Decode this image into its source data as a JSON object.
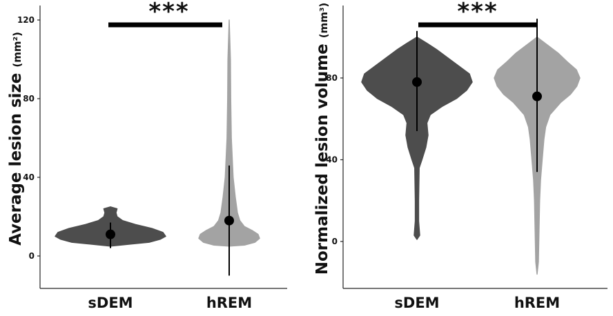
{
  "chart_data": [
    {
      "type": "violin",
      "ylabel": "Average lesion size",
      "yunit": "(mm²)",
      "categories": [
        "sDEM",
        "hREM"
      ],
      "yticks": [
        0,
        40,
        80,
        120
      ],
      "ylim": [
        -15,
        120
      ],
      "grid": false,
      "series": [
        {
          "category": "sDEM",
          "color": "#4d4d4d",
          "median": 11,
          "range": [
            4,
            17
          ],
          "min": 5,
          "max": 25
        },
        {
          "category": "hREM",
          "color": "#a3a3a3",
          "median": 18,
          "range": [
            -10,
            46
          ],
          "min": 5,
          "max": 120
        }
      ],
      "significance": {
        "label": "***",
        "between": [
          "sDEM",
          "hREM"
        ]
      }
    },
    {
      "type": "violin",
      "ylabel": "Normalized lesion volume",
      "yunit": "(mm³)",
      "categories": [
        "sDEM",
        "hREM"
      ],
      "yticks": [
        0,
        40,
        80
      ],
      "ylim": [
        -20,
        115
      ],
      "grid": false,
      "series": [
        {
          "category": "sDEM",
          "color": "#4d4d4d",
          "median": 78,
          "range": [
            54,
            103
          ],
          "min": 1,
          "max": 100
        },
        {
          "category": "hREM",
          "color": "#a3a3a3",
          "median": 71,
          "range": [
            34,
            109
          ],
          "min": -16,
          "max": 100
        }
      ],
      "significance": {
        "label": "***",
        "between": [
          "sDEM",
          "hREM"
        ]
      }
    }
  ]
}
